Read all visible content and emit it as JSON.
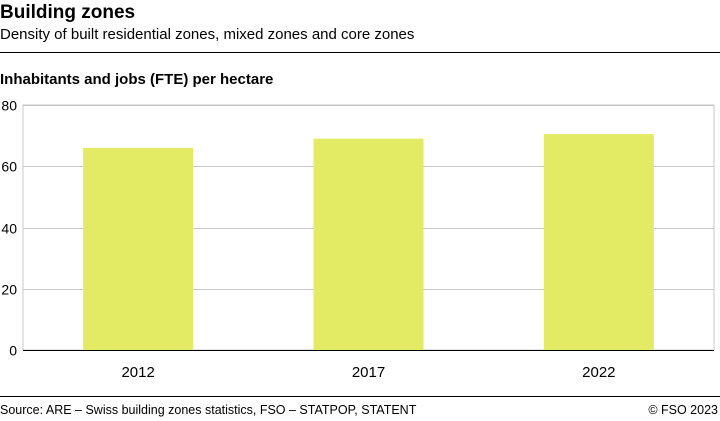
{
  "header": {
    "title": "Building zones",
    "subtitle": "Density of built residential zones, mixed zones and core zones"
  },
  "chart_data": {
    "type": "bar",
    "ylabel": "Inhabitants and jobs (FTE) per hectare",
    "xlabel": "",
    "categories": [
      "2012",
      "2017",
      "2022"
    ],
    "values": [
      66,
      69,
      70.5
    ],
    "ylim": [
      0,
      80
    ],
    "yticks": [
      0,
      20,
      40,
      60,
      80
    ],
    "grid": true,
    "bar_color": "#e2eb63",
    "grid_color": "#c8c8c8"
  },
  "footer": {
    "source": "Source: ARE – Swiss building zones statistics, FSO –  STATPOP, STATENT",
    "copyright": "© FSO 2023"
  }
}
